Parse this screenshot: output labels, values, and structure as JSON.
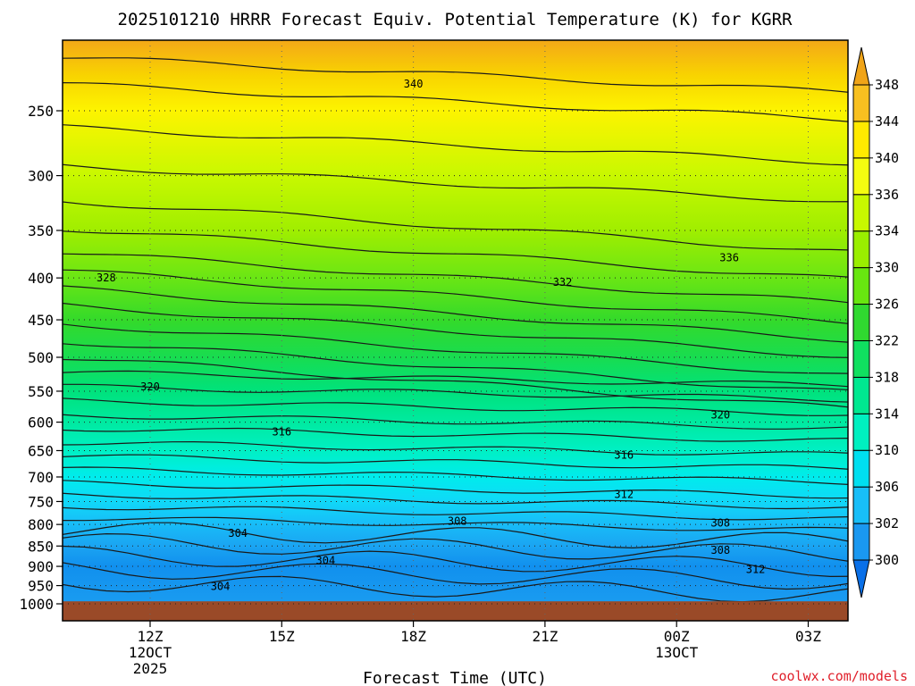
{
  "chart_data": {
    "type": "contour",
    "title": "2025101210 HRRR Forecast Equiv. Potential Temperature (K) for KGRR",
    "xlabel": "Forecast Time (UTC)",
    "ylabel": "",
    "x_ticks": [
      {
        "value": 12,
        "label": "12Z",
        "label2": "12OCT",
        "label3": "2025"
      },
      {
        "value": 15,
        "label": "15Z",
        "label2": "",
        "label3": ""
      },
      {
        "value": 18,
        "label": "18Z",
        "label2": "",
        "label3": ""
      },
      {
        "value": 21,
        "label": "21Z",
        "label2": "",
        "label3": ""
      },
      {
        "value": 24,
        "label": "00Z",
        "label2": "13OCT",
        "label3": ""
      },
      {
        "value": 27,
        "label": "03Z",
        "label2": "",
        "label3": ""
      }
    ],
    "xlim": [
      10,
      28
    ],
    "y_ticks": [
      "250",
      "300",
      "350",
      "400",
      "450",
      "500",
      "550",
      "600",
      "650",
      "700",
      "750",
      "800",
      "850",
      "900",
      "950",
      "1000"
    ],
    "ylim": [
      1000,
      200
    ],
    "yscale": "log-pressure",
    "ground_level_hPa": 993,
    "ground_color": "#9a4a28",
    "colorbar": {
      "levels": [
        "300",
        "302",
        "306",
        "310",
        "314",
        "318",
        "322",
        "326",
        "330",
        "334",
        "336",
        "340",
        "344",
        "348"
      ],
      "colors": [
        "#0a70e8",
        "#1a98f0",
        "#18bef8",
        "#00dff0",
        "#00f0c0",
        "#00e890",
        "#10e060",
        "#30d930",
        "#68e610",
        "#9aee00",
        "#c8f800",
        "#f4fc10",
        "#ffea00",
        "#f8c020",
        "#f0a418"
      ]
    },
    "fields": [
      {
        "name": "theta-e",
        "units": "K",
        "contour_labels": [
          {
            "value": "340",
            "time": 18.0,
            "pressure": 232
          },
          {
            "value": "336",
            "time": 25.2,
            "pressure": 378
          },
          {
            "value": "332",
            "time": 21.4,
            "pressure": 405
          },
          {
            "value": "328",
            "time": 11.0,
            "pressure": 400
          },
          {
            "value": "320",
            "time": 12.0,
            "pressure": 543
          },
          {
            "value": "320",
            "time": 25.0,
            "pressure": 588
          },
          {
            "value": "316",
            "time": 15.0,
            "pressure": 617
          },
          {
            "value": "316",
            "time": 22.8,
            "pressure": 658
          },
          {
            "value": "312",
            "time": 22.8,
            "pressure": 735
          },
          {
            "value": "308",
            "time": 19.0,
            "pressure": 793
          },
          {
            "value": "308",
            "time": 25.0,
            "pressure": 797
          },
          {
            "value": "308",
            "time": 25.0,
            "pressure": 860
          },
          {
            "value": "304",
            "time": 14.0,
            "pressure": 820
          },
          {
            "value": "304",
            "time": 16.0,
            "pressure": 885
          },
          {
            "value": "304",
            "time": 13.6,
            "pressure": 952
          },
          {
            "value": "312",
            "time": 25.8,
            "pressure": 908
          }
        ]
      }
    ]
  },
  "credit": "coolwx.com/models"
}
